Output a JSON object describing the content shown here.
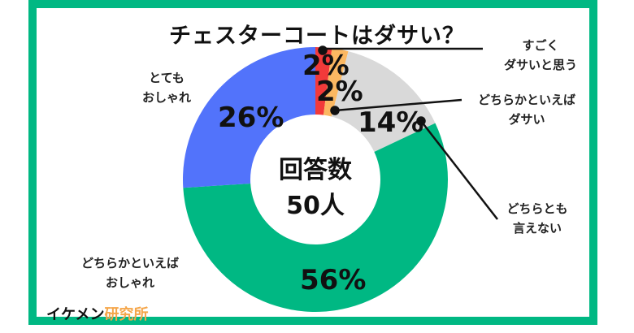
{
  "title": "チェスターコートはダサい？",
  "center": {
    "line1": "回答数",
    "line2": "50人"
  },
  "brand": {
    "part1": "イケメン",
    "part2": "研究所"
  },
  "colors": {
    "frame": "#00b883",
    "red": "#f23a3a",
    "orange": "#fbb862",
    "gray": "#d9d9d9",
    "green": "#00b883",
    "blue": "#5273fb"
  },
  "labels": {
    "very_dasai_1": "すごく",
    "very_dasai_2": "ダサいと思う",
    "rather_dasai_1": "どちらかといえば",
    "rather_dasai_2": "ダサい",
    "neither_1": "どちらとも",
    "neither_2": "言えない",
    "rather_oshare_1": "どちらかといえば",
    "rather_oshare_2": "おしゃれ",
    "very_oshare_1": "とても",
    "very_oshare_2": "おしゃれ"
  },
  "percents": {
    "very_dasai": "2%",
    "rather_dasai": "2%",
    "neither": "14%",
    "rather_oshare": "56%",
    "very_oshare": "26%"
  },
  "chart_data": {
    "type": "pie",
    "subtype": "donut",
    "title": "チェスターコートはダサい？",
    "center_text": "回答数 50人",
    "categories": [
      "すごくダサいと思う",
      "どちらかといえばダサい",
      "どちらとも言えない",
      "どちらかといえばおしゃれ",
      "とてもおしゃれ"
    ],
    "values": [
      2,
      2,
      14,
      56,
      26
    ],
    "unit": "%",
    "colors": [
      "#f23a3a",
      "#fbb862",
      "#d9d9d9",
      "#00b883",
      "#5273fb"
    ],
    "start_angle": "12 o'clock, clockwise",
    "legend": "callout labels"
  }
}
